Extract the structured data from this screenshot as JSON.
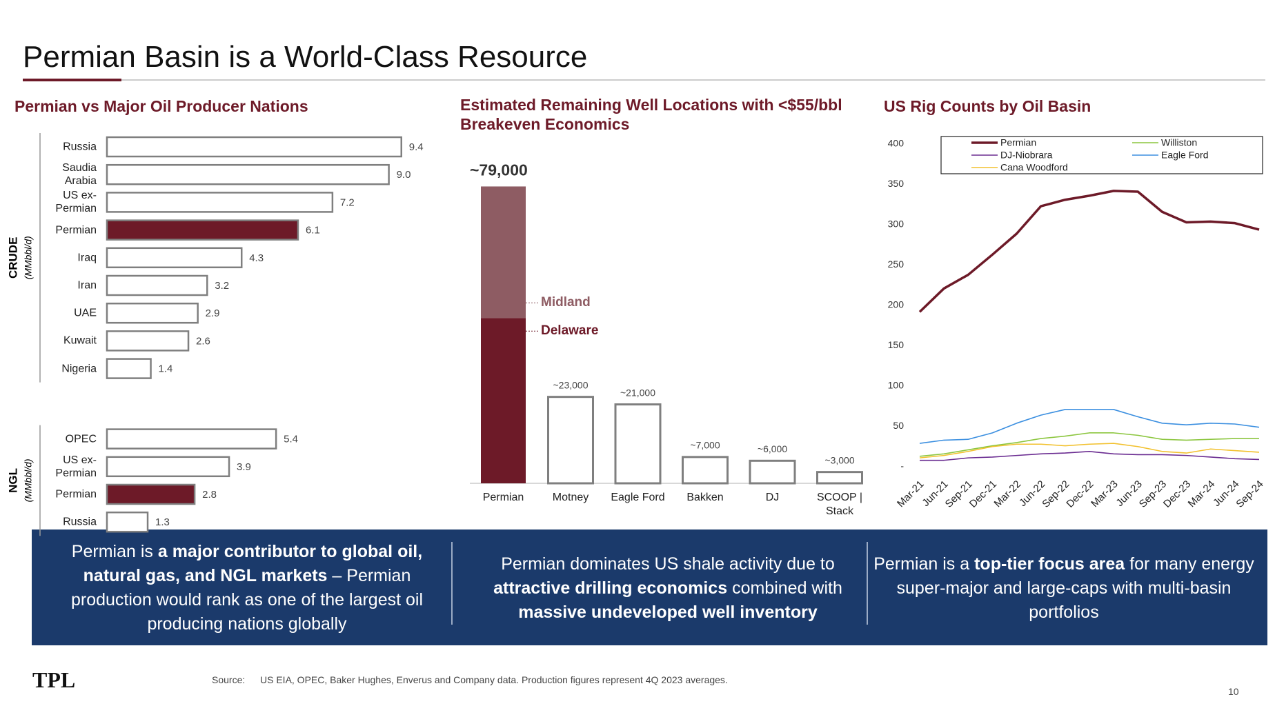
{
  "header": {
    "title": "Permian Basin is a World-Class Resource"
  },
  "chart_data": [
    {
      "type": "hbar",
      "title": "Permian vs Major Oil Producer Nations",
      "xlim": [
        0,
        10
      ],
      "edge_color": "#7f7f7f",
      "groups": [
        {
          "name": "CRUDE",
          "unit": "(MMbbl/d)",
          "categories": [
            "Russia",
            "Saudia Arabia",
            "US ex-Permian",
            "Permian",
            "Iraq",
            "Iran",
            "UAE",
            "Kuwait",
            "Nigeria"
          ],
          "values": [
            9.4,
            9.0,
            7.2,
            6.1,
            4.3,
            3.2,
            2.9,
            2.6,
            1.4
          ],
          "value_labels": [
            "9.4",
            "9.0",
            "7.2",
            "6.1",
            "4.3",
            "3.2",
            "2.9",
            "2.6",
            "1.4"
          ],
          "colors": [
            "#ffffff",
            "#ffffff",
            "#ffffff",
            "#6d1a28",
            "#ffffff",
            "#ffffff",
            "#ffffff",
            "#ffffff",
            "#ffffff"
          ]
        },
        {
          "name": "NGL",
          "unit": "(MMbbl/d)",
          "categories": [
            "OPEC",
            "US ex-Permian",
            "Permian",
            "Russia"
          ],
          "values": [
            5.4,
            3.9,
            2.8,
            1.3
          ],
          "value_labels": [
            "5.4",
            "3.9",
            "2.8",
            "1.3"
          ],
          "colors": [
            "#ffffff",
            "#ffffff",
            "#6d1a28",
            "#ffffff"
          ]
        }
      ]
    },
    {
      "type": "bar",
      "title": "Estimated Remaining Well Locations with <$55/bbl Breakeven Economics",
      "ylim": [
        0,
        80000
      ],
      "color": "#ffffff",
      "edge_color": "#7f7f7f",
      "categories": [
        "Permian",
        "Motney",
        "Eagle Ford",
        "Bakken",
        "DJ",
        "SCOOP | Stack"
      ],
      "values": [
        79000,
        23000,
        21000,
        7000,
        6000,
        3000
      ],
      "value_labels": [
        "~79,000",
        "~23,000",
        "~21,000",
        "~7,000",
        "~6,000",
        "~3,000"
      ],
      "segments": [
        {
          "name": "Delaware",
          "color": "#6d1a28",
          "value": 44000
        },
        {
          "name": "Midland",
          "color": "#8e5c63",
          "value": 35000
        }
      ]
    },
    {
      "type": "line",
      "title": "US Rig Counts by Oil Basin",
      "ylim": [
        0,
        400
      ],
      "yticks": [
        {
          "value": 0,
          "label": "-"
        },
        50,
        100,
        150,
        200,
        250,
        300,
        350,
        400
      ],
      "categories": [
        "Mar-21",
        "Jun-21",
        "Sep-21",
        "Dec-21",
        "Mar-22",
        "Jun-22",
        "Sep-22",
        "Dec-22",
        "Mar-23",
        "Jun-23",
        "Sep-23",
        "Dec-23",
        "Mar-24",
        "Jun-24",
        "Sep-24"
      ],
      "series": [
        {
          "name": "Permian",
          "color": "#6d1a28",
          "line_width": 3.5,
          "values": [
            192,
            221,
            238,
            263,
            289,
            323,
            331,
            336,
            342,
            341,
            316,
            303,
            304,
            302,
            294
          ]
        },
        {
          "name": "Williston",
          "color": "#8cc63f",
          "line_width": 1.6,
          "values": [
            13,
            16,
            21,
            26,
            30,
            35,
            38,
            42,
            42,
            39,
            34,
            33,
            34,
            35,
            35
          ]
        },
        {
          "name": "DJ-Niobrara",
          "color": "#6a2c91",
          "line_width": 1.6,
          "values": [
            8,
            8,
            11,
            12,
            14,
            16,
            17,
            19,
            16,
            15,
            15,
            14,
            12,
            10,
            9
          ]
        },
        {
          "name": "Eagle Ford",
          "color": "#3b8fe0",
          "line_width": 1.6,
          "values": [
            29,
            33,
            34,
            42,
            54,
            64,
            71,
            71,
            71,
            62,
            54,
            52,
            54,
            53,
            49
          ]
        },
        {
          "name": "Cana Woodford",
          "color": "#f2c12e",
          "line_width": 1.6,
          "values": [
            11,
            14,
            19,
            25,
            28,
            28,
            26,
            28,
            29,
            25,
            19,
            17,
            22,
            20,
            18
          ]
        }
      ]
    }
  ],
  "callouts": [
    {
      "runs": [
        {
          "text": "Permian is "
        },
        {
          "text": "a major contributor to global oil, natural gas, and NGL markets",
          "bold": true
        },
        {
          "text": " – Permian production would rank as one of the largest oil producing nations globally"
        }
      ]
    },
    {
      "runs": [
        {
          "text": "Permian dominates US shale activity due to "
        },
        {
          "text": "attractive drilling economics",
          "bold": true
        },
        {
          "text": " combined with "
        },
        {
          "text": "massive undeveloped well inventory",
          "bold": true
        }
      ]
    },
    {
      "runs": [
        {
          "text": "Permian is a "
        },
        {
          "text": "top-tier focus area",
          "bold": true
        },
        {
          "text": " for many energy super-major and large-caps with multi-basin portfolios"
        }
      ]
    }
  ],
  "footer": {
    "logo": "TPL",
    "source_label": "Source:",
    "source": "US EIA, OPEC, Baker Hughes, Enverus and Company data. Production figures represent 4Q 2023 averages.",
    "page": "10"
  }
}
